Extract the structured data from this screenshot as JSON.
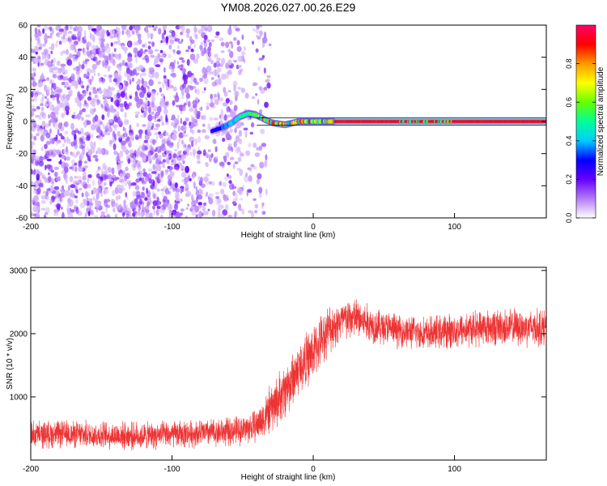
{
  "title": "YM08.2026.027.00.26.E29",
  "chart_data": [
    {
      "type": "heatmap",
      "xlabel": "Height of straight line (km)",
      "ylabel": "Frequency (Hz)",
      "xlim": [
        -200,
        165
      ],
      "ylim": [
        -60,
        60
      ],
      "xticks": [
        -200,
        -100,
        0,
        100
      ],
      "yticks": [
        -60,
        -40,
        -20,
        0,
        20,
        40,
        60
      ],
      "colorbar": {
        "label": "Normalized spectral amplitude",
        "range": [
          0,
          1
        ],
        "ticks": [
          0.0,
          0.2,
          0.4,
          0.6,
          0.8
        ],
        "colors": [
          "#ffffff",
          "#b37bf6",
          "#6600ff",
          "#0000ff",
          "#00ccff",
          "#00ff99",
          "#66ff00",
          "#ffff00",
          "#ff9900",
          "#ff0000",
          "#ff0066"
        ]
      },
      "noise_region": {
        "x": [
          -200,
          -40
        ],
        "y": [
          -60,
          60
        ],
        "amplitude": [
          0.05,
          0.2
        ]
      },
      "signal_track": [
        {
          "x": -72,
          "y": -6
        },
        {
          "x": -65,
          "y": -4
        },
        {
          "x": -58,
          "y": -1
        },
        {
          "x": -52,
          "y": 3
        },
        {
          "x": -46,
          "y": 5
        },
        {
          "x": -40,
          "y": 4
        },
        {
          "x": -34,
          "y": 1
        },
        {
          "x": -28,
          "y": -1
        },
        {
          "x": -20,
          "y": -2
        },
        {
          "x": -10,
          "y": 0
        },
        {
          "x": 0,
          "y": 0
        },
        {
          "x": 10,
          "y": 0
        },
        {
          "x": 50,
          "y": 0
        },
        {
          "x": 100,
          "y": 0
        },
        {
          "x": 165,
          "y": 0
        }
      ]
    },
    {
      "type": "line",
      "xlabel": "Height of straight line (km)",
      "ylabel": "SNR (10 * v/v)",
      "xlim": [
        -200,
        165
      ],
      "ylim": [
        0,
        3050
      ],
      "xticks": [
        -200,
        -100,
        0,
        100
      ],
      "yticks": [
        1000,
        2000,
        3000
      ],
      "color": "#ee3333",
      "x": [
        -200,
        -180,
        -160,
        -140,
        -120,
        -100,
        -80,
        -60,
        -50,
        -40,
        -30,
        -20,
        -10,
        0,
        10,
        20,
        30,
        40,
        60,
        80,
        100,
        120,
        140,
        165
      ],
      "y": [
        400,
        410,
        400,
        390,
        380,
        400,
        430,
        450,
        480,
        550,
        800,
        1100,
        1450,
        1700,
        2050,
        2200,
        2250,
        2150,
        2050,
        2000,
        2050,
        2100,
        2100,
        2100
      ],
      "noise_amplitude": [
        250,
        250,
        250,
        250,
        250,
        250,
        250,
        260,
        270,
        300,
        450,
        500,
        500,
        500,
        450,
        400,
        380,
        350,
        300,
        300,
        320,
        330,
        340,
        350
      ]
    }
  ]
}
